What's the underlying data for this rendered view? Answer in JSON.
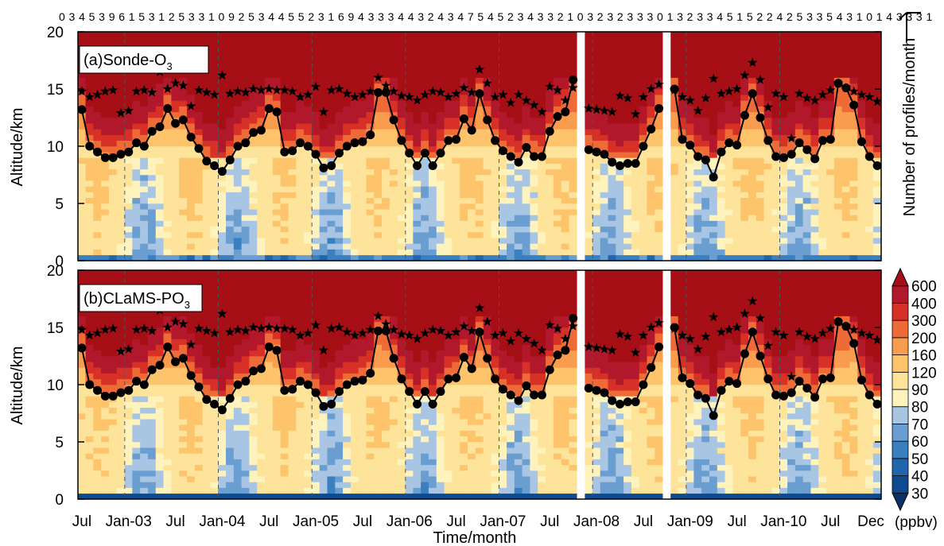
{
  "chart_data": {
    "type": "heatmap",
    "xlabel": "Time/month",
    "ylabel_a": "Altitude/km",
    "ylabel_b": "Altitude/km",
    "y2label": "Number of profiles/month",
    "ylim": [
      0,
      20
    ],
    "y_ticks": [
      "0",
      "5",
      "10",
      "15",
      "20"
    ],
    "x_ticks": [
      "Jul",
      "Jan-03",
      "Jul",
      "Jan-04",
      "Jul",
      "Jan-05",
      "Jul",
      "Jan-06",
      "Jul",
      "Jan-07",
      "Jul",
      "Jan-08",
      "Jul",
      "Jan-09",
      "Jul",
      "Jan-10",
      "Jul",
      "Dec"
    ],
    "panels": [
      {
        "label": "(a)Sonde-O",
        "label_sub": "3"
      },
      {
        "label": "(b)CLaMS-PO",
        "label_sub": "3"
      }
    ],
    "profile_counts": "0345396153125331092534455231694333443243475452343321032323330132334515224253354310143331",
    "colorbar": {
      "unit": "(ppbv)",
      "levels": [
        "30",
        "40",
        "50",
        "60",
        "70",
        "80",
        "90",
        "120",
        "160",
        "200",
        "300",
        "400",
        "600"
      ],
      "colors": [
        "#08306b",
        "#0d4a8f",
        "#2166ac",
        "#3a7fbf",
        "#6a9ed0",
        "#a8c6e4",
        "#fff3bd",
        "#fde49a",
        "#fdc46c",
        "#f99c4e",
        "#ee6a36",
        "#d73027",
        "#b2182b",
        "#a50f15"
      ]
    },
    "lapse_rate_tropopause_km": [
      13.2,
      10.0,
      9.5,
      9.0,
      9.0,
      9.3,
      9.5,
      10.3,
      10.0,
      11.3,
      11.7,
      13.3,
      12.0,
      12.3,
      10.8,
      9.8,
      8.7,
      8.3,
      7.8,
      8.8,
      10.0,
      10.3,
      11.2,
      11.4,
      13.3,
      13.0,
      9.5,
      9.6,
      10.3,
      10.0,
      9.3,
      8.1,
      8.3,
      9.4,
      10.0,
      10.3,
      10.4,
      11.0,
      14.7,
      14.7,
      12.3,
      10.5,
      9.4,
      8.3,
      9.4,
      8.3,
      9.4,
      10.5,
      10.6,
      12.4,
      11.4,
      14.6,
      12.3,
      10.5,
      9.6,
      9.1,
      8.6,
      9.9,
      9.1,
      9.1,
      11.3,
      12.6,
      13.0,
      15.8,
      null,
      9.7,
      9.5,
      9.3,
      8.6,
      8.3,
      8.5,
      8.5,
      10.0,
      11.5,
      13.3,
      null,
      15.0,
      10.6,
      10.1,
      9.1,
      8.8,
      7.3,
      9.5,
      10.3,
      10.1,
      12.7,
      14.6,
      12.5,
      10.5,
      9.1,
      9.0,
      9.3,
      10.3,
      9.7,
      8.9,
      10.5,
      10.6,
      15.5,
      15.1,
      13.6,
      10.4,
      9.1,
      8.3
    ],
    "cold_point_tropopause_km": [
      14.8,
      14.3,
      14.5,
      14.8,
      14.9,
      12.9,
      13.1,
      14.8,
      14.9,
      14.7,
      16.5,
      15.0,
      15.5,
      15.3,
      13.5,
      14.9,
      14.7,
      14.5,
      16.2,
      14.6,
      14.8,
      14.7,
      15.0,
      14.9,
      15.0,
      14.9,
      14.9,
      14.8,
      14.3,
      14.5,
      15.2,
      13.0,
      14.9,
      15.0,
      14.6,
      14.3,
      14.5,
      14.8,
      16.0,
      15.3,
      14.8,
      14.4,
      14.3,
      14.0,
      14.5,
      14.8,
      14.7,
      14.3,
      14.6,
      15.1,
      14.7,
      16.7,
      15.5,
      14.3,
      14.5,
      13.8,
      14.5,
      14.0,
      13.6,
      13.0,
      15.2,
      14.9,
      14.0,
      15.1,
      null,
      13.3,
      13.2,
      13.1,
      13.0,
      14.4,
      14.2,
      12.8,
      14.3,
      15.0,
      15.4,
      null,
      14.9,
      14.3,
      14.0,
      13.1,
      14.2,
      15.9,
      14.6,
      14.8,
      15.0,
      16.2,
      17.3,
      15.8,
      13.4,
      14.6,
      14.3,
      10.7,
      14.6,
      14.2,
      14.0,
      14.5,
      14.9,
      15.5,
      15.1,
      14.8,
      14.5,
      14.3,
      13.9
    ]
  }
}
